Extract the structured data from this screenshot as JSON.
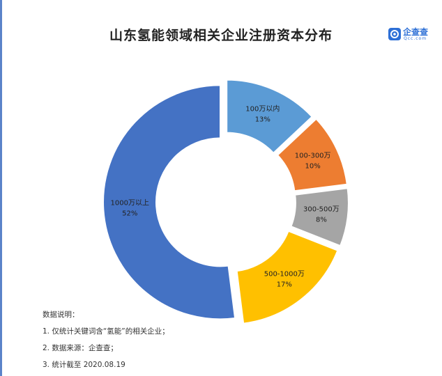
{
  "title": "山东氢能领域相关企业注册资本分布",
  "logo": {
    "name": "企查查",
    "domain": "Qcc.com"
  },
  "chart_data": {
    "type": "pie",
    "title": "山东氢能领域相关企业注册资本分布",
    "categories": [
      "100万以内",
      "100-300万",
      "300-500万",
      "500-1000万",
      "1000万以上"
    ],
    "values": [
      13,
      10,
      8,
      17,
      52
    ],
    "value_labels": [
      "13%",
      "10%",
      "8%",
      "17%",
      "52%"
    ],
    "colors": [
      "#5b9bd5",
      "#ed7d31",
      "#a5a5a5",
      "#ffc000",
      "#4472c4"
    ],
    "donut": true,
    "exploded": true
  },
  "notes": {
    "heading": "数据说明：",
    "items": [
      "1. 仅统计关键词含“氢能”的相关企业；",
      "2. 数据来源：企查查；",
      "3. 统计截至 2020.08.19"
    ]
  }
}
